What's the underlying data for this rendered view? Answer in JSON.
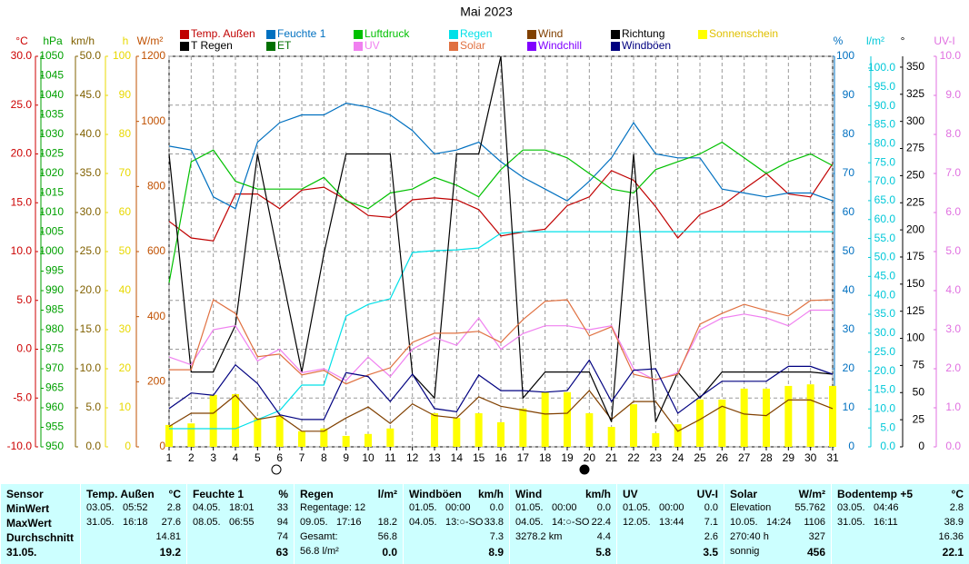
{
  "chart_data": {
    "type": "line",
    "title": "Mai 2023",
    "x": [
      1,
      2,
      3,
      4,
      5,
      6,
      7,
      8,
      9,
      10,
      11,
      12,
      13,
      14,
      15,
      16,
      17,
      18,
      19,
      20,
      21,
      22,
      23,
      24,
      25,
      26,
      27,
      28,
      29,
      30,
      31
    ],
    "xlim": [
      1,
      31
    ],
    "xticks": [
      1,
      2,
      3,
      4,
      5,
      6,
      7,
      8,
      9,
      10,
      11,
      12,
      13,
      14,
      15,
      16,
      17,
      18,
      19,
      20,
      21,
      22,
      23,
      24,
      25,
      26,
      27,
      28,
      29,
      30,
      31
    ],
    "grid": true,
    "axes": [
      {
        "label": "°C",
        "side": "left",
        "color": "#cc0000",
        "lim": [
          -10,
          30
        ],
        "ticks": [
          {
            "value": -10,
            "label": "-10.0"
          },
          {
            "value": -5,
            "label": "-5.0"
          },
          {
            "value": 0,
            "label": "0.0"
          },
          {
            "value": 5,
            "label": "5.0"
          },
          {
            "value": 10,
            "label": "10.0"
          },
          {
            "value": 15,
            "label": "15.0"
          },
          {
            "value": 20,
            "label": "20.0"
          },
          {
            "value": 25,
            "label": "25.0"
          },
          {
            "value": 30,
            "label": "30.0"
          }
        ]
      },
      {
        "label": "hPa",
        "side": "left",
        "color": "#00a000",
        "lim": [
          950,
          1050
        ],
        "ticks": [
          950,
          955,
          960,
          965,
          970,
          975,
          980,
          985,
          990,
          995,
          1000,
          1005,
          1010,
          1015,
          1020,
          1025,
          1030,
          1035,
          1040,
          1045,
          1050
        ]
      },
      {
        "label": "km/h",
        "side": "left",
        "color": "#806000",
        "lim": [
          0,
          50
        ],
        "ticks": [
          {
            "value": 0,
            "label": "0.0"
          },
          {
            "value": 5,
            "label": "5.0"
          },
          {
            "value": 10,
            "label": "10.0"
          },
          {
            "value": 15,
            "label": "15.0"
          },
          {
            "value": 20,
            "label": "20.0"
          },
          {
            "value": 25,
            "label": "25.0"
          },
          {
            "value": 30,
            "label": "30.0"
          },
          {
            "value": 35,
            "label": "35.0"
          },
          {
            "value": 40,
            "label": "40.0"
          },
          {
            "value": 45,
            "label": "45.0"
          },
          {
            "value": 50,
            "label": "50.0"
          }
        ]
      },
      {
        "label": "h",
        "side": "left",
        "color": "#e8d800",
        "lim": [
          0,
          100
        ],
        "ticks": [
          0,
          10,
          20,
          30,
          40,
          50,
          60,
          70,
          80,
          90,
          100
        ]
      },
      {
        "label": "W/m²",
        "side": "left",
        "color": "#c05000",
        "lim": [
          0,
          1200
        ],
        "ticks": [
          0,
          200,
          400,
          600,
          800,
          1000,
          1200
        ]
      },
      {
        "label": "%",
        "side": "right",
        "color": "#0070c0",
        "lim": [
          0,
          100
        ],
        "ticks": [
          0,
          10,
          20,
          30,
          40,
          50,
          60,
          70,
          80,
          90,
          100
        ]
      },
      {
        "label": "l/m²",
        "side": "right",
        "color": "#00c8d8",
        "lim": [
          0,
          103.1
        ],
        "ticks": [
          {
            "value": 0,
            "label": "0.0"
          },
          {
            "value": 5,
            "label": "5.0"
          },
          {
            "value": 10,
            "label": "10.0"
          },
          {
            "value": 15,
            "label": "15.0"
          },
          {
            "value": 20,
            "label": "20.0"
          },
          {
            "value": 25,
            "label": "25.0"
          },
          {
            "value": 30,
            "label": "30.0"
          },
          {
            "value": 35,
            "label": "35.0"
          },
          {
            "value": 40,
            "label": "40.0"
          },
          {
            "value": 45,
            "label": "45.0"
          },
          {
            "value": 50,
            "label": "50.0"
          },
          {
            "value": 55,
            "label": "55.0"
          },
          {
            "value": 60,
            "label": "60.0"
          },
          {
            "value": 65,
            "label": "65.0"
          },
          {
            "value": 70,
            "label": "70.0"
          },
          {
            "value": 75,
            "label": "75.0"
          },
          {
            "value": 80,
            "label": "80.0"
          },
          {
            "value": 85,
            "label": "85.0"
          },
          {
            "value": 90,
            "label": "90.0"
          },
          {
            "value": 95,
            "label": "95.0"
          },
          {
            "value": 100,
            "label": "100.0"
          }
        ]
      },
      {
        "label": "°",
        "side": "right",
        "color": "#000000",
        "lim": [
          0,
          360
        ],
        "ticks": [
          0,
          25,
          50,
          75,
          100,
          125,
          150,
          175,
          200,
          225,
          250,
          275,
          300,
          325,
          350
        ]
      },
      {
        "label": "UV-I",
        "side": "right",
        "color": "#e070e0",
        "lim": [
          0,
          10
        ],
        "ticks": [
          {
            "value": 0,
            "label": "0.0"
          },
          {
            "value": 1,
            "label": "1.0"
          },
          {
            "value": 2,
            "label": "2.0"
          },
          {
            "value": 3,
            "label": "3.0"
          },
          {
            "value": 4,
            "label": "4.0"
          },
          {
            "value": 5,
            "label": "5.0"
          },
          {
            "value": 6,
            "label": "6.0"
          },
          {
            "value": 7,
            "label": "7.0"
          },
          {
            "value": 8,
            "label": "8.0"
          },
          {
            "value": 9,
            "label": "9.0"
          },
          {
            "value": 10,
            "label": "10.0"
          }
        ]
      }
    ],
    "series": [
      {
        "name": "Temp. Außen",
        "color": "#c00000",
        "axis": "°C",
        "style": "line",
        "values": [
          13.1,
          11.4,
          11.1,
          15.9,
          15.9,
          14.4,
          16.3,
          16.6,
          15.3,
          13.7,
          13.5,
          15.3,
          15.5,
          15.3,
          14.3,
          11.6,
          12.0,
          12.3,
          14.7,
          15.6,
          18.3,
          17.3,
          14.6,
          11.4,
          13.8,
          14.7,
          16.4,
          18.0,
          15.9,
          15.6,
          19.0
        ]
      },
      {
        "name": "Feuchte 1",
        "color": "#0070c0",
        "axis": "%",
        "style": "line",
        "values": [
          77,
          76,
          64,
          61,
          78,
          83,
          85,
          85,
          88,
          87,
          85,
          81,
          75,
          76,
          78,
          73,
          69,
          66,
          63,
          68,
          74,
          83,
          75,
          74,
          74,
          66,
          65,
          64,
          65,
          65,
          63
        ]
      },
      {
        "name": "Luftdruck",
        "color": "#00c000",
        "axis": "hPa",
        "style": "line",
        "values": [
          992,
          1023,
          1026,
          1018,
          1016,
          1016,
          1016,
          1019,
          1013,
          1011,
          1015,
          1016,
          1019,
          1017,
          1014,
          1021,
          1026,
          1026,
          1024,
          1020,
          1016,
          1015,
          1021,
          1023,
          1025,
          1028,
          1024,
          1020,
          1023,
          1025,
          1022
        ]
      },
      {
        "name": "Regen",
        "color": "#00e0e8",
        "axis": "l/m²",
        "style": "line",
        "values": [
          4.8,
          4.8,
          4.8,
          4.8,
          7.2,
          9.6,
          16.3,
          16.3,
          34.5,
          37.6,
          39.1,
          51.3,
          51.8,
          52.0,
          52.5,
          56.4,
          56.8,
          56.8,
          56.8,
          56.8,
          56.8,
          56.8,
          56.8,
          56.8,
          56.8,
          56.8,
          56.8,
          56.8,
          56.8,
          56.8,
          56.8
        ]
      },
      {
        "name": "Wind",
        "color": "#804000",
        "axis": "km/h",
        "style": "line",
        "values": [
          2.6,
          4.3,
          4.3,
          6.6,
          3.5,
          4.0,
          2.0,
          2.0,
          3.7,
          5.1,
          3.0,
          5.5,
          4.0,
          3.7,
          6.4,
          5.2,
          4.7,
          4.2,
          4.3,
          7.2,
          3.5,
          5.8,
          5.8,
          2.0,
          3.5,
          5.2,
          4.2,
          4.0,
          6.0,
          6.0,
          4.9
        ]
      },
      {
        "name": "Richtung",
        "color": "#000000",
        "axis": "°",
        "style": "line",
        "values": [
          270,
          69,
          69,
          112,
          270,
          169,
          69,
          178,
          270,
          270,
          270,
          67,
          45,
          270,
          270,
          360,
          45,
          69,
          69,
          69,
          23,
          270,
          23,
          69,
          45,
          69,
          69,
          69,
          69,
          69,
          67
        ]
      },
      {
        "name": "Sonnenschein",
        "color": "#ffff00",
        "axis": "h",
        "style": "bar",
        "values": [
          5.6,
          6.0,
          13.3,
          13.5,
          7.4,
          7.9,
          4.0,
          4.7,
          2.8,
          3.3,
          4.7,
          0,
          8.6,
          7.4,
          8.6,
          6.3,
          9.8,
          14.0,
          14.0,
          8.6,
          5.1,
          10.9,
          3.5,
          5.8,
          12.1,
          12.1,
          14.9,
          14.9,
          15.6,
          16.0,
          15.6
        ]
      },
      {
        "name": "T Regen",
        "color": "#000000",
        "axis": "l/m²",
        "style": "line",
        "values": [
          null,
          null,
          null,
          null,
          null,
          null,
          null,
          null,
          null,
          null,
          null,
          null,
          null,
          null,
          null,
          null,
          null,
          null,
          null,
          null,
          null,
          null,
          null,
          null,
          null,
          null,
          null,
          null,
          null,
          null,
          null
        ]
      },
      {
        "name": "ET",
        "color": "#007000",
        "axis": "l/m²",
        "style": "line",
        "values": [
          null,
          null,
          null,
          null,
          null,
          null,
          null,
          null,
          null,
          null,
          null,
          null,
          null,
          null,
          null,
          null,
          null,
          null,
          null,
          null,
          null,
          null,
          null,
          null,
          null,
          null,
          null,
          null,
          null,
          null,
          null
        ]
      },
      {
        "name": "UV",
        "color": "#f080f0",
        "axis": "UV-I",
        "style": "line",
        "values": [
          2.3,
          2.1,
          3.0,
          3.1,
          2.2,
          2.5,
          1.9,
          2.0,
          1.7,
          2.3,
          1.8,
          2.5,
          2.8,
          2.6,
          3.3,
          2.5,
          2.9,
          3.1,
          3.1,
          3.0,
          3.1,
          2.0,
          1.7,
          1.9,
          3.0,
          3.3,
          3.4,
          3.3,
          3.1,
          3.5,
          3.5
        ]
      },
      {
        "name": "Solar",
        "color": "#e07040",
        "axis": "W/m²",
        "style": "line",
        "values": [
          237,
          237,
          452,
          410,
          277,
          285,
          221,
          235,
          193,
          221,
          243,
          321,
          349,
          349,
          355,
          321,
          391,
          447,
          452,
          341,
          369,
          223,
          207,
          223,
          377,
          410,
          438,
          419,
          402,
          450,
          452
        ]
      },
      {
        "name": "Windchill",
        "color": "#8000ff",
        "axis": "°C",
        "style": "line",
        "values": [
          null,
          null,
          null,
          null,
          null,
          null,
          null,
          null,
          null,
          null,
          null,
          null,
          null,
          null,
          null,
          null,
          null,
          null,
          null,
          null,
          null,
          null,
          null,
          null,
          null,
          null,
          null,
          null,
          null,
          null,
          null
        ]
      },
      {
        "name": "Windböen",
        "color": "#000080",
        "axis": "km/h",
        "style": "line",
        "values": [
          4.9,
          6.9,
          6.6,
          10.5,
          8.1,
          4.1,
          3.5,
          3.5,
          9.5,
          9.0,
          5.8,
          9.3,
          4.9,
          4.5,
          9.2,
          7.2,
          7.2,
          7.0,
          7.2,
          11.1,
          5.8,
          9.8,
          10.0,
          4.3,
          6.4,
          8.4,
          8.4,
          8.4,
          10.3,
          10.3,
          9.3
        ]
      }
    ]
  },
  "table": {
    "sections": [
      {
        "title": "Sensor",
        "rows": [
          [
            "MinWert"
          ],
          [
            "MaxWert"
          ],
          [
            "Durchschnitt"
          ],
          [
            "31.05."
          ]
        ]
      },
      {
        "title": "Temp. Außen",
        "unit": "°C",
        "rows": [
          [
            "03.05.",
            "05:52",
            "2.8"
          ],
          [
            "31.05.",
            "16:18",
            "27.6"
          ],
          [
            "14.81"
          ],
          [
            "19.2"
          ]
        ]
      },
      {
        "title": "Feuchte 1",
        "unit": "%",
        "rows": [
          [
            "04.05.",
            "18:01",
            "33"
          ],
          [
            "08.05.",
            "06:55",
            "94"
          ],
          [
            "74"
          ],
          [
            "63"
          ]
        ]
      },
      {
        "title": "Regen",
        "unit": "l/m²",
        "rows": [
          [
            "Regentage: 12"
          ],
          [
            "09.05.",
            "17:16",
            "18.2"
          ],
          [
            "Gesamt:",
            "56.8"
          ],
          [
            "56.8 l/m²",
            "0.0"
          ]
        ]
      },
      {
        "title": "Windböen",
        "unit": "km/h",
        "rows": [
          [
            "01.05.",
            "00:00",
            "0.0"
          ],
          [
            "04.05.",
            "13:○-SO",
            "33.8"
          ],
          [
            "7.3"
          ],
          [
            "8.9"
          ]
        ]
      },
      {
        "title": "Wind",
        "unit": "km/h",
        "rows": [
          [
            "01.05.",
            "00:00",
            "0.0"
          ],
          [
            "04.05.",
            "14:○-SO",
            "22.4"
          ],
          [
            "3278.2 km",
            "4.4"
          ],
          [
            "5.8"
          ]
        ]
      },
      {
        "title": "UV",
        "unit": "UV-I",
        "rows": [
          [
            "01.05.",
            "00:00",
            "0.0"
          ],
          [
            "12.05.",
            "13:44",
            "7.1"
          ],
          [
            "2.6"
          ],
          [
            "3.5"
          ]
        ]
      },
      {
        "title": "Solar",
        "unit": "W/m²",
        "rows": [
          [
            "Elevation",
            "55.762"
          ],
          [
            "10.05.",
            "14:24",
            "1106"
          ],
          [
            "270:40 h",
            "327"
          ],
          [
            "sonnig",
            "456"
          ]
        ]
      },
      {
        "title": "Bodentemp +5",
        "unit": "°C",
        "rows": [
          [
            "03.05.",
            "04:46",
            "2.8"
          ],
          [
            "31.05.",
            "16:11",
            "38.9"
          ],
          [
            "16.36"
          ],
          [
            "22.1"
          ]
        ]
      }
    ]
  }
}
